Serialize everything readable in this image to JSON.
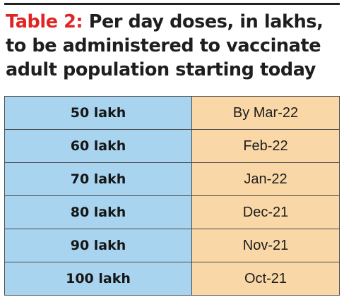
{
  "title": {
    "lead": "Table 2:",
    "text": "Per day doses, in lakhs, to be administered to vaccinate adult population starting today"
  },
  "colors": {
    "lead": "#e02424",
    "dose_cell": "#a9d4ef",
    "date_cell": "#f9d7a6"
  },
  "chart_data": {
    "type": "table",
    "title": "Table 2: Per day doses, in lakhs, to be administered to vaccinate adult population starting today",
    "rows": [
      {
        "dose": "50 lakh",
        "date": "By Mar-22"
      },
      {
        "dose": "60 lakh",
        "date": "Feb-22"
      },
      {
        "dose": "70 lakh",
        "date": "Jan-22"
      },
      {
        "dose": "80 lakh",
        "date": "Dec-21"
      },
      {
        "dose": "90 lakh",
        "date": "Nov-21"
      },
      {
        "dose": "100 lakh",
        "date": "Oct-21"
      }
    ]
  }
}
